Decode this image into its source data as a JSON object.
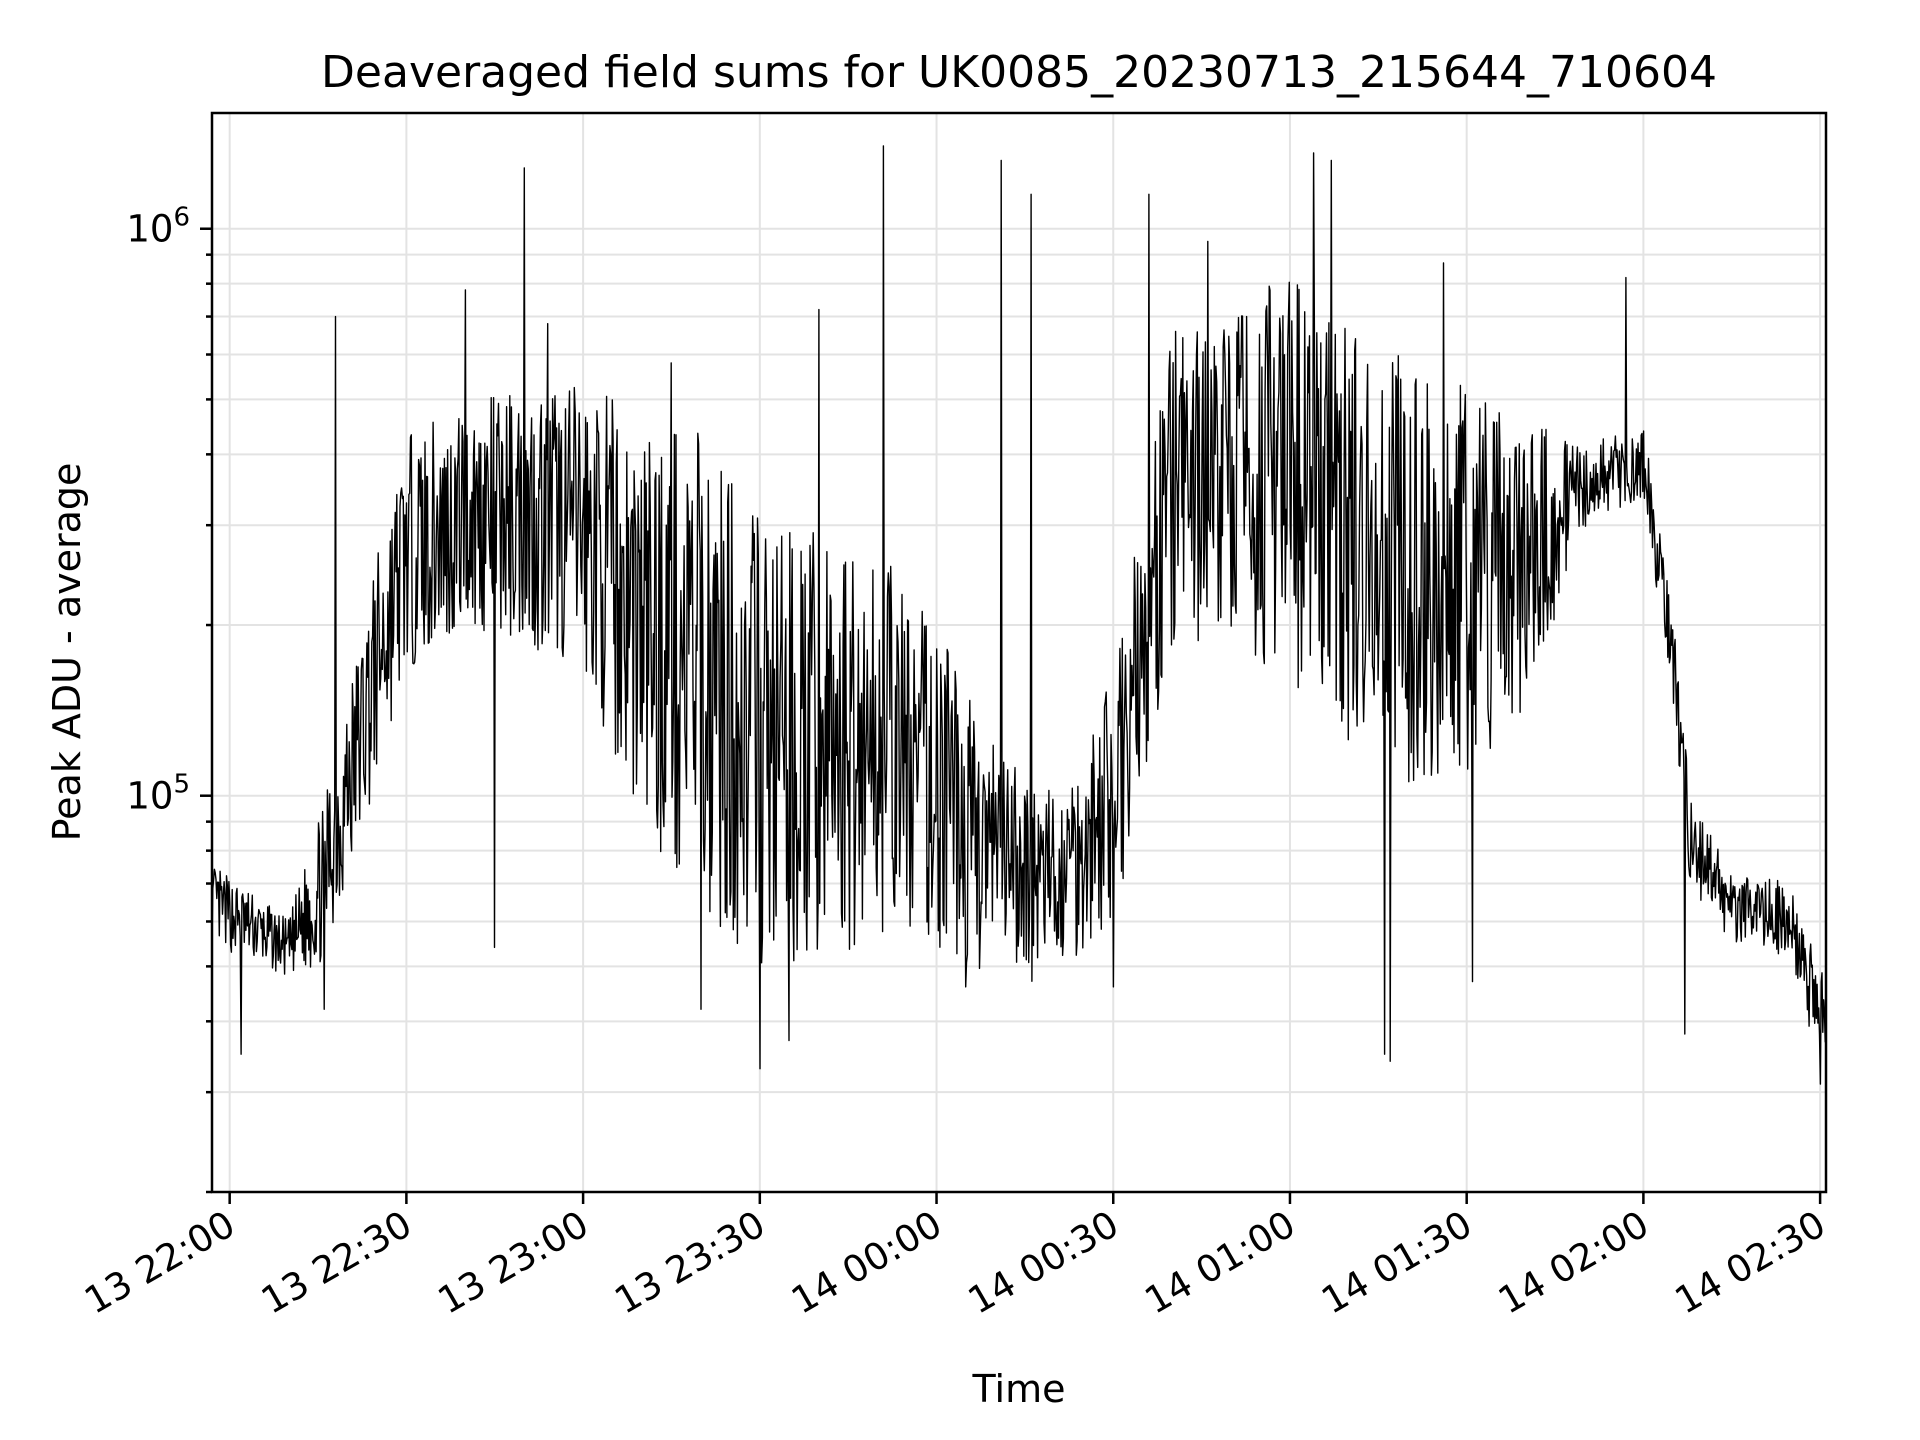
{
  "chart_data": {
    "type": "line",
    "title": "Deaveraged field sums for UK0085_20230713_215644_710604",
    "xlabel": "Time",
    "ylabel": "Peak ADU - average",
    "y_scale": "log",
    "grid": true,
    "legend": "none",
    "series_color": "#000000",
    "xlim": [
      "13 21:57",
      "14 02:31"
    ],
    "ylim": [
      20000,
      1600000
    ],
    "x_ticks": [
      "13 22:00",
      "13 22:30",
      "13 23:00",
      "13 23:30",
      "14 00:00",
      "14 00:30",
      "14 01:00",
      "14 01:30",
      "14 02:00",
      "14 02:30"
    ],
    "y_ticks": [
      {
        "base": "10",
        "exp": "5",
        "value": 100000
      },
      {
        "base": "10",
        "exp": "6",
        "value": 1000000
      }
    ],
    "envelope": [
      {
        "t": "13 21:57",
        "lo": 55000,
        "hi": 75000
      },
      {
        "t": "13 22:03",
        "lo": 52000,
        "hi": 68000
      },
      {
        "t": "13 22:10",
        "lo": 48000,
        "hi": 60000
      },
      {
        "t": "13 22:15",
        "lo": 50000,
        "hi": 90000
      },
      {
        "t": "13 22:20",
        "lo": 70000,
        "hi": 150000
      },
      {
        "t": "13 22:25",
        "lo": 110000,
        "hi": 260000
      },
      {
        "t": "13 22:30",
        "lo": 170000,
        "hi": 420000
      },
      {
        "t": "13 22:40",
        "lo": 200000,
        "hi": 480000
      },
      {
        "t": "13 22:50",
        "lo": 190000,
        "hi": 520000
      },
      {
        "t": "13 23:00",
        "lo": 170000,
        "hi": 520000
      },
      {
        "t": "13 23:10",
        "lo": 90000,
        "hi": 450000
      },
      {
        "t": "13 23:20",
        "lo": 65000,
        "hi": 420000
      },
      {
        "t": "13 23:30",
        "lo": 50000,
        "hi": 300000
      },
      {
        "t": "13 23:40",
        "lo": 50000,
        "hi": 280000
      },
      {
        "t": "13 23:50",
        "lo": 60000,
        "hi": 260000
      },
      {
        "t": "14 00:00",
        "lo": 55000,
        "hi": 200000
      },
      {
        "t": "14 00:10",
        "lo": 48000,
        "hi": 120000
      },
      {
        "t": "14 00:20",
        "lo": 48000,
        "hi": 100000
      },
      {
        "t": "14 00:30",
        "lo": 60000,
        "hi": 160000
      },
      {
        "t": "14 00:40",
        "lo": 180000,
        "hi": 650000
      },
      {
        "t": "14 00:50",
        "lo": 200000,
        "hi": 700000
      },
      {
        "t": "14 01:00",
        "lo": 160000,
        "hi": 800000
      },
      {
        "t": "14 01:10",
        "lo": 130000,
        "hi": 650000
      },
      {
        "t": "14 01:20",
        "lo": 110000,
        "hi": 600000
      },
      {
        "t": "14 01:30",
        "lo": 110000,
        "hi": 520000
      },
      {
        "t": "14 01:40",
        "lo": 140000,
        "hi": 450000
      },
      {
        "t": "14 01:50",
        "lo": 300000,
        "hi": 420000
      },
      {
        "t": "14 02:00",
        "lo": 330000,
        "hi": 440000
      },
      {
        "t": "14 02:04",
        "lo": 180000,
        "hi": 260000
      },
      {
        "t": "14 02:08",
        "lo": 70000,
        "hi": 100000
      },
      {
        "t": "14 02:15",
        "lo": 55000,
        "hi": 72000
      },
      {
        "t": "14 02:25",
        "lo": 52000,
        "hi": 70000
      },
      {
        "t": "14 02:31",
        "lo": 30000,
        "hi": 46000
      }
    ],
    "peaks": [
      {
        "t": "13 22:18",
        "y": 700000
      },
      {
        "t": "13 22:40",
        "y": 780000
      },
      {
        "t": "13 22:50",
        "y": 1280000
      },
      {
        "t": "13 22:54",
        "y": 680000
      },
      {
        "t": "13 23:15",
        "y": 580000
      },
      {
        "t": "13 23:35",
        "y": 660000
      },
      {
        "t": "13 23:40",
        "y": 720000
      },
      {
        "t": "13 23:51",
        "y": 1400000
      },
      {
        "t": "14 00:11",
        "y": 1320000
      },
      {
        "t": "14 00:16",
        "y": 1150000
      },
      {
        "t": "14 00:36",
        "y": 1150000
      },
      {
        "t": "14 00:46",
        "y": 950000
      },
      {
        "t": "14 01:04",
        "y": 1360000
      },
      {
        "t": "14 01:07",
        "y": 1320000
      },
      {
        "t": "14 01:26",
        "y": 870000
      },
      {
        "t": "14 01:57",
        "y": 820000
      }
    ],
    "dips": [
      {
        "t": "13 22:02",
        "y": 35000
      },
      {
        "t": "13 22:16",
        "y": 42000
      },
      {
        "t": "13 22:45",
        "y": 54000
      },
      {
        "t": "13 23:20",
        "y": 42000
      },
      {
        "t": "13 23:30",
        "y": 33000
      },
      {
        "t": "13 23:35",
        "y": 37000
      },
      {
        "t": "14 00:05",
        "y": 46000
      },
      {
        "t": "14 00:30",
        "y": 46000
      },
      {
        "t": "14 01:16",
        "y": 35000
      },
      {
        "t": "14 01:17",
        "y": 34000
      },
      {
        "t": "14 01:31",
        "y": 47000
      },
      {
        "t": "14 02:07",
        "y": 38000
      },
      {
        "t": "14 02:30",
        "y": 31000
      }
    ]
  }
}
